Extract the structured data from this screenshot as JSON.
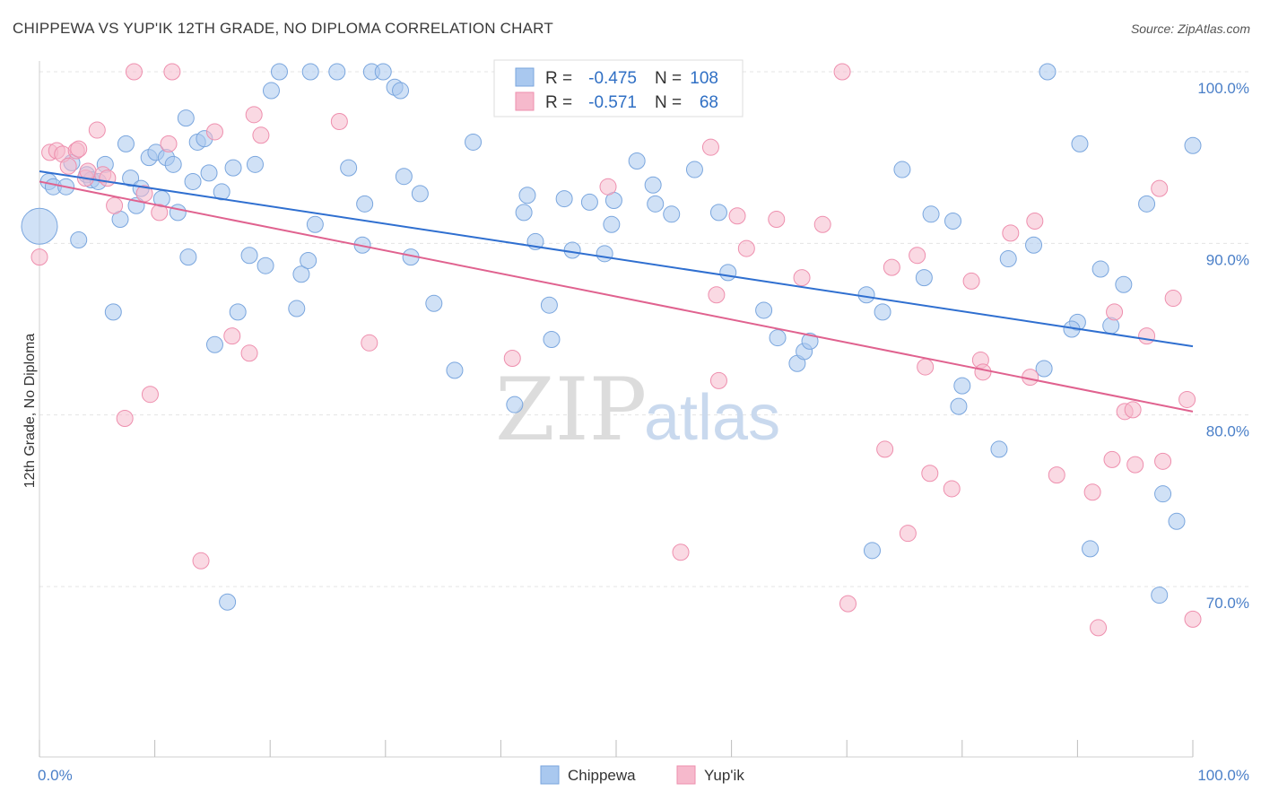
{
  "title": "CHIPPEWA VS YUP'IK 12TH GRADE, NO DIPLOMA CORRELATION CHART",
  "source": "Source: ZipAtlas.com",
  "watermark": {
    "zip": "ZIP",
    "atlas": "atlas"
  },
  "legend": [
    {
      "r_label": "R =",
      "r_value": "-0.475",
      "n_label": "N =",
      "n_value": "108",
      "color": "#a9c8ef",
      "stroke": "#7aa6de"
    },
    {
      "r_label": "R =",
      "r_value": "-0.571",
      "n_label": "N =",
      "n_value": "68",
      "color": "#f6b9cc",
      "stroke": "#ee8fae"
    }
  ],
  "chart_data": {
    "type": "scatter",
    "title": "CHIPPEWA VS YUP'IK 12TH GRADE, NO DIPLOMA CORRELATION CHART",
    "xlabel": "",
    "ylabel": "12th Grade, No Diploma",
    "xlim": [
      0,
      100
    ],
    "ylim": [
      61,
      101
    ],
    "x_ticks": [
      "0.0%",
      "100.0%"
    ],
    "y_ticks": [
      {
        "value": 70,
        "label": "70.0%"
      },
      {
        "value": 80,
        "label": "80.0%"
      },
      {
        "value": 90,
        "label": "90.0%"
      },
      {
        "value": 100,
        "label": "100.0%"
      }
    ],
    "grid": true,
    "legend_placement": "top-center",
    "series": [
      {
        "name": "Chippewa",
        "color": "#a9c8ef",
        "stroke": "#7aa6de",
        "line_color": "#2f6fd0",
        "trend": {
          "x0": 0,
          "y0": 94.2,
          "x1": 100,
          "y1": 84.0
        },
        "points": [
          [
            0.0,
            91.0
          ],
          [
            0.8,
            93.6
          ],
          [
            1.2,
            93.3
          ],
          [
            2.3,
            93.3
          ],
          [
            2.8,
            94.7
          ],
          [
            3.4,
            90.2
          ],
          [
            4.1,
            94.0
          ],
          [
            4.5,
            93.7
          ],
          [
            5.1,
            93.6
          ],
          [
            5.7,
            94.6
          ],
          [
            6.4,
            86.0
          ],
          [
            7.0,
            91.4
          ],
          [
            7.5,
            95.8
          ],
          [
            7.9,
            93.8
          ],
          [
            8.4,
            92.2
          ],
          [
            8.8,
            93.2
          ],
          [
            9.5,
            95.0
          ],
          [
            10.1,
            95.3
          ],
          [
            10.6,
            92.6
          ],
          [
            11.0,
            95.0
          ],
          [
            11.6,
            94.6
          ],
          [
            12.0,
            91.8
          ],
          [
            12.7,
            97.3
          ],
          [
            12.9,
            89.2
          ],
          [
            13.3,
            93.6
          ],
          [
            13.7,
            95.9
          ],
          [
            14.3,
            96.1
          ],
          [
            14.7,
            94.1
          ],
          [
            15.2,
            84.1
          ],
          [
            15.8,
            93.0
          ],
          [
            16.3,
            69.1
          ],
          [
            16.8,
            94.4
          ],
          [
            17.2,
            86.0
          ],
          [
            18.2,
            89.3
          ],
          [
            18.7,
            94.6
          ],
          [
            19.6,
            88.7
          ],
          [
            20.1,
            98.9
          ],
          [
            20.8,
            100.0
          ],
          [
            22.3,
            86.2
          ],
          [
            22.7,
            88.2
          ],
          [
            23.3,
            89.0
          ],
          [
            23.5,
            100.0
          ],
          [
            23.9,
            91.1
          ],
          [
            25.8,
            100.0
          ],
          [
            26.8,
            94.4
          ],
          [
            28.0,
            89.9
          ],
          [
            28.2,
            92.3
          ],
          [
            28.8,
            100.0
          ],
          [
            29.8,
            100.0
          ],
          [
            30.8,
            99.1
          ],
          [
            31.3,
            98.9
          ],
          [
            31.6,
            93.9
          ],
          [
            32.2,
            89.2
          ],
          [
            33.0,
            92.9
          ],
          [
            34.2,
            86.5
          ],
          [
            36.0,
            82.6
          ],
          [
            37.6,
            95.9
          ],
          [
            41.2,
            80.6
          ],
          [
            42.3,
            92.8
          ],
          [
            43.0,
            90.1
          ],
          [
            44.2,
            86.4
          ],
          [
            44.4,
            84.4
          ],
          [
            45.5,
            92.6
          ],
          [
            46.2,
            89.6
          ],
          [
            47.7,
            92.4
          ],
          [
            49.0,
            89.4
          ],
          [
            49.6,
            91.1
          ],
          [
            49.8,
            92.5
          ],
          [
            51.8,
            94.8
          ],
          [
            53.2,
            93.4
          ],
          [
            53.4,
            92.3
          ],
          [
            54.8,
            91.7
          ],
          [
            56.8,
            94.3
          ],
          [
            58.9,
            91.8
          ],
          [
            59.7,
            88.3
          ],
          [
            62.8,
            86.1
          ],
          [
            64.0,
            84.5
          ],
          [
            65.7,
            83.0
          ],
          [
            66.3,
            83.7
          ],
          [
            66.8,
            84.3
          ],
          [
            71.7,
            87.0
          ],
          [
            72.2,
            72.1
          ],
          [
            73.1,
            86.0
          ],
          [
            74.8,
            94.3
          ],
          [
            76.7,
            88.0
          ],
          [
            77.3,
            91.7
          ],
          [
            79.2,
            91.3
          ],
          [
            79.7,
            80.5
          ],
          [
            80.0,
            81.7
          ],
          [
            83.2,
            78.0
          ],
          [
            84.0,
            89.1
          ],
          [
            86.2,
            89.9
          ],
          [
            87.1,
            82.7
          ],
          [
            87.4,
            100.0
          ],
          [
            90.0,
            85.4
          ],
          [
            90.2,
            95.8
          ],
          [
            91.1,
            72.2
          ],
          [
            92.0,
            88.5
          ],
          [
            92.9,
            85.2
          ],
          [
            94.0,
            87.6
          ],
          [
            96.0,
            92.3
          ],
          [
            97.1,
            69.5
          ],
          [
            97.4,
            75.4
          ],
          [
            98.6,
            73.8
          ],
          [
            100.0,
            95.7
          ],
          [
            89.5,
            85.0
          ],
          [
            42.0,
            91.8
          ]
        ]
      },
      {
        "name": "Yup'ik",
        "color": "#f6b9cc",
        "stroke": "#ee8fae",
        "line_color": "#e0628f",
        "trend": {
          "x0": 0,
          "y0": 93.6,
          "x1": 100,
          "y1": 80.2
        },
        "points": [
          [
            0.0,
            89.2
          ],
          [
            0.9,
            95.3
          ],
          [
            1.5,
            95.4
          ],
          [
            2.0,
            95.2
          ],
          [
            2.5,
            94.5
          ],
          [
            3.2,
            95.4
          ],
          [
            3.4,
            95.5
          ],
          [
            4.0,
            93.8
          ],
          [
            4.2,
            94.2
          ],
          [
            5.0,
            96.6
          ],
          [
            5.5,
            94.0
          ],
          [
            5.9,
            93.8
          ],
          [
            6.5,
            92.2
          ],
          [
            7.4,
            79.8
          ],
          [
            8.2,
            100.0
          ],
          [
            9.1,
            92.9
          ],
          [
            9.6,
            81.2
          ],
          [
            10.4,
            91.8
          ],
          [
            11.2,
            95.8
          ],
          [
            11.5,
            100.0
          ],
          [
            14.0,
            71.5
          ],
          [
            15.2,
            96.5
          ],
          [
            16.7,
            84.6
          ],
          [
            18.2,
            83.6
          ],
          [
            18.6,
            97.5
          ],
          [
            19.2,
            96.3
          ],
          [
            26.0,
            97.1
          ],
          [
            28.6,
            84.2
          ],
          [
            41.0,
            83.3
          ],
          [
            49.3,
            93.3
          ],
          [
            55.6,
            72.0
          ],
          [
            58.2,
            95.6
          ],
          [
            58.7,
            87.0
          ],
          [
            58.9,
            82.0
          ],
          [
            60.5,
            91.6
          ],
          [
            61.3,
            89.7
          ],
          [
            63.9,
            91.4
          ],
          [
            66.1,
            88.0
          ],
          [
            67.9,
            91.1
          ],
          [
            69.6,
            100.0
          ],
          [
            70.1,
            69.0
          ],
          [
            73.3,
            78.0
          ],
          [
            73.9,
            88.6
          ],
          [
            75.3,
            73.1
          ],
          [
            76.1,
            89.3
          ],
          [
            76.8,
            82.8
          ],
          [
            77.2,
            76.6
          ],
          [
            79.1,
            75.7
          ],
          [
            80.8,
            87.8
          ],
          [
            81.6,
            83.2
          ],
          [
            81.8,
            82.5
          ],
          [
            84.2,
            90.6
          ],
          [
            85.9,
            82.2
          ],
          [
            86.3,
            91.3
          ],
          [
            88.2,
            76.5
          ],
          [
            91.3,
            75.5
          ],
          [
            91.8,
            67.6
          ],
          [
            93.0,
            77.4
          ],
          [
            93.2,
            86.0
          ],
          [
            94.1,
            80.2
          ],
          [
            94.8,
            80.3
          ],
          [
            95.0,
            77.1
          ],
          [
            96.0,
            84.6
          ],
          [
            97.1,
            93.2
          ],
          [
            97.4,
            77.3
          ],
          [
            98.3,
            86.8
          ],
          [
            99.5,
            80.9
          ],
          [
            100.0,
            68.1
          ]
        ]
      }
    ]
  },
  "bottom_legend": [
    {
      "label": "Chippewa",
      "color": "#a9c8ef",
      "stroke": "#7aa6de"
    },
    {
      "label": "Yup'ik",
      "color": "#f6b9cc",
      "stroke": "#ee8fae"
    }
  ]
}
